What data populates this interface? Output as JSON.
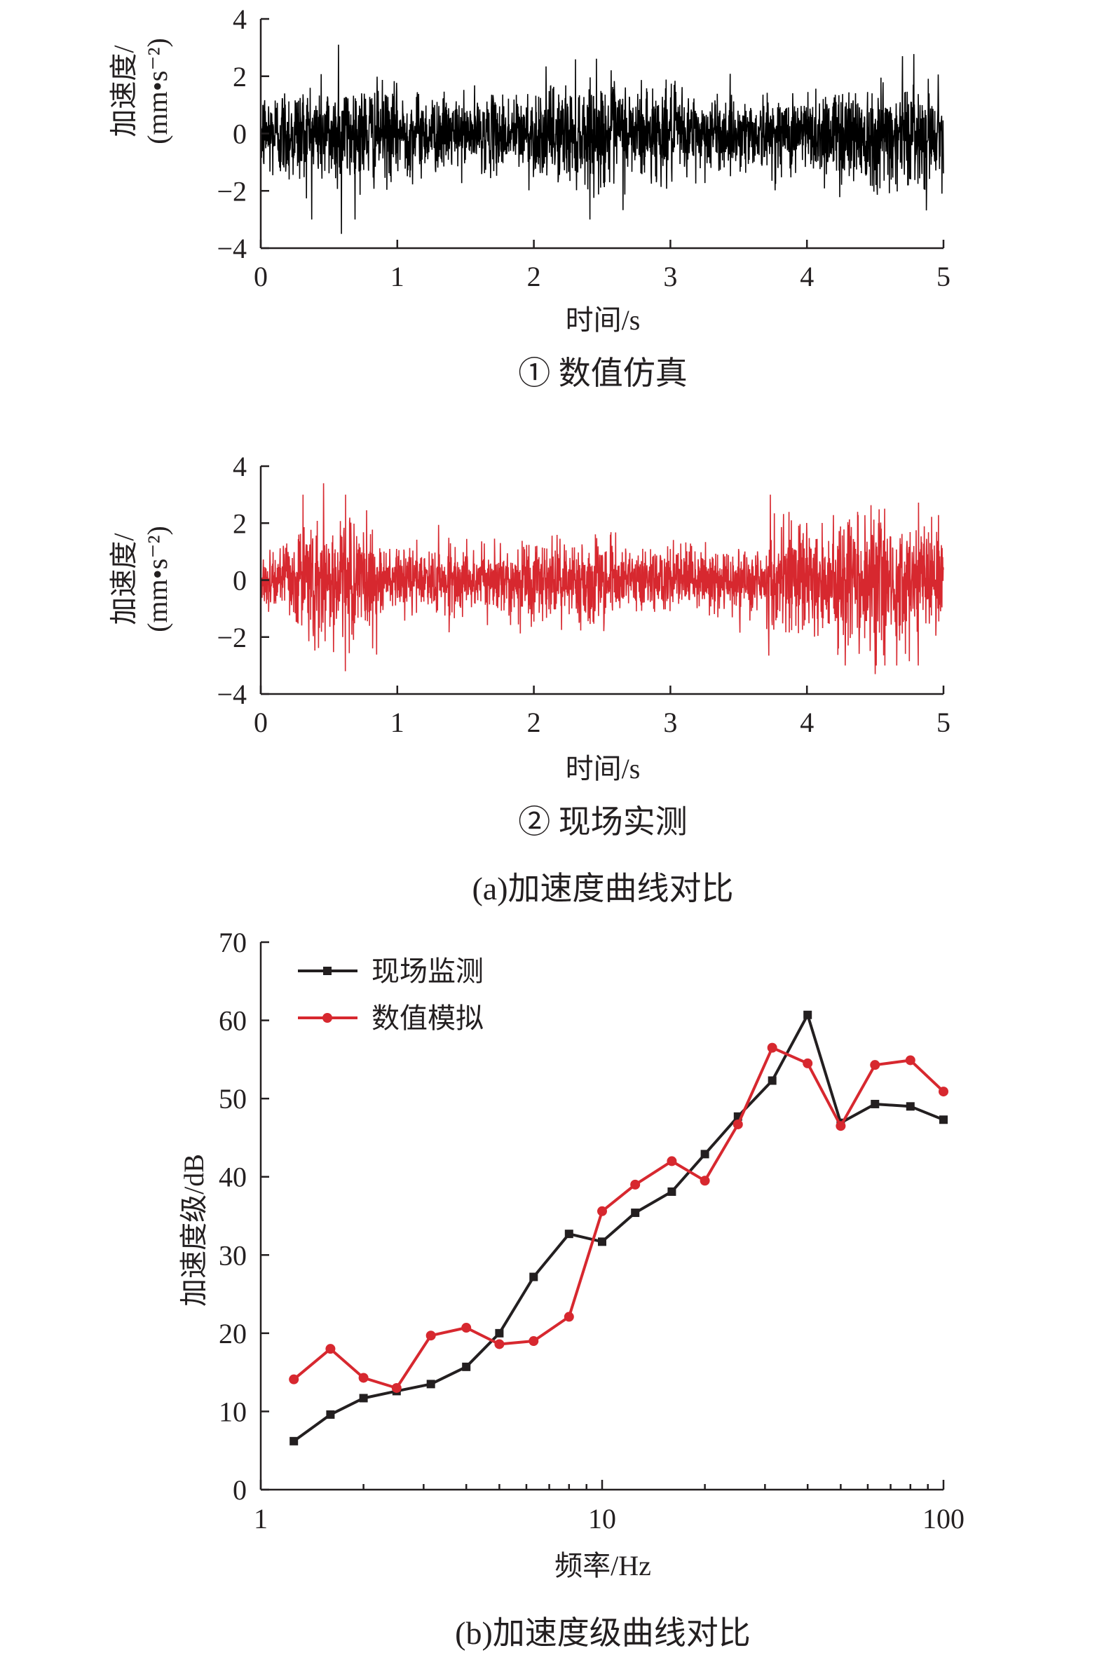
{
  "chart_data": [
    {
      "type": "line",
      "panel": "①",
      "caption": "① 数值仿真",
      "xlabel": "时间/s",
      "ylabel_line1": "加速度/",
      "ylabel_line2": "(mm•s⁻²)",
      "xlim": [
        0,
        5
      ],
      "ylim": [
        -4,
        4
      ],
      "xticks": [
        "0",
        "1",
        "2",
        "3",
        "4",
        "5"
      ],
      "yticks": [
        "−4",
        "−2",
        "0",
        "2",
        "4"
      ],
      "series": [
        {
          "color": "#000000",
          "signal": "random vibration, roughly ±1.5 typical, peaks up to about ±3.5",
          "peaks": [
            {
              "x": 0.57,
              "y": 3.1
            },
            {
              "x": 0.59,
              "y": -3.5
            },
            {
              "x": 4.7,
              "y": 2.7
            }
          ]
        }
      ]
    },
    {
      "type": "line",
      "panel": "②",
      "caption": "② 现场实测",
      "xlabel": "时间/s",
      "ylabel_line1": "加速度/",
      "ylabel_line2": "(mm•s⁻²)",
      "xlim": [
        0,
        5
      ],
      "ylim": [
        -4,
        4
      ],
      "xticks": [
        "0",
        "1",
        "2",
        "3",
        "4",
        "5"
      ],
      "yticks": [
        "−4",
        "−2",
        "0",
        "2",
        "4"
      ],
      "series": [
        {
          "color": "#d7282f",
          "signal": "random vibration, envelope larger near 0.3–0.8 s and 3.8–5 s",
          "peaks": [
            {
              "x": 0.46,
              "y": 3.4
            },
            {
              "x": 0.62,
              "y": -3.2
            },
            {
              "x": 4.5,
              "y": -3.3
            }
          ]
        }
      ]
    },
    {
      "type": "line",
      "caption": "(b)加速度级曲线对比",
      "xlabel": "频率/Hz",
      "ylabel": "加速度级/dB",
      "xscale": "log",
      "xlim": [
        1,
        100
      ],
      "ylim": [
        0,
        70
      ],
      "xticks": [
        "1",
        "10",
        "100"
      ],
      "yticks": [
        "0",
        "10",
        "20",
        "30",
        "40",
        "50",
        "60",
        "70"
      ],
      "legend_position": "top-left",
      "x": [
        1.25,
        1.6,
        2,
        2.5,
        3.15,
        4,
        5,
        6.3,
        8,
        10,
        12.5,
        16,
        20,
        25,
        31.5,
        40,
        50,
        63,
        80,
        100
      ],
      "series": [
        {
          "name": "现场监测",
          "color": "#231f20",
          "marker": "square",
          "values": [
            6.2,
            9.6,
            11.7,
            12.6,
            13.5,
            15.7,
            20.0,
            27.2,
            32.7,
            31.7,
            35.4,
            38.1,
            42.9,
            47.7,
            52.3,
            60.7,
            46.9,
            49.3,
            49.0,
            47.3
          ]
        },
        {
          "name": "数值模拟",
          "color": "#d7282f",
          "marker": "circle",
          "values": [
            14.1,
            18.0,
            14.3,
            13.0,
            19.7,
            20.7,
            18.6,
            19.0,
            22.1,
            35.6,
            39.0,
            42.0,
            39.5,
            46.7,
            56.5,
            54.5,
            46.5,
            54.3,
            54.9,
            50.9
          ]
        }
      ]
    }
  ],
  "captions": {
    "panel_a": "(a)加速度曲线对比"
  }
}
